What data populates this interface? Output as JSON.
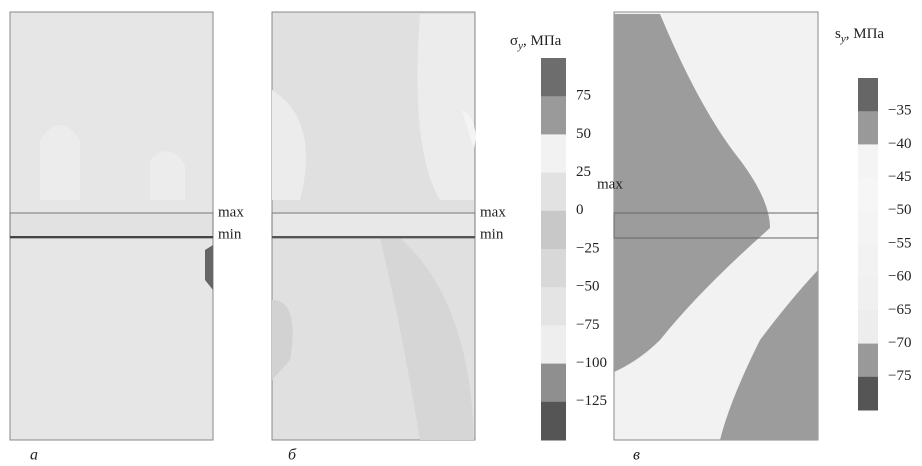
{
  "panels": [
    {
      "label": "а",
      "max": "max",
      "min": "min"
    },
    {
      "label": "б",
      "max": "max",
      "min": "min"
    },
    {
      "label": "в",
      "max": "max"
    }
  ],
  "legends": [
    {
      "symbol": "σ",
      "subscript": "y",
      "unit": ", МПа",
      "ticks": [
        "75",
        "50",
        "25",
        "0",
        "−25",
        "−50",
        "−75",
        "−100",
        "−125"
      ]
    },
    {
      "symbol": "s",
      "subscript": "y",
      "unit": ", МПа",
      "ticks": [
        "−35",
        "−40",
        "−45",
        "−50",
        "−55",
        "−60",
        "−65",
        "−70",
        "−75"
      ]
    }
  ]
}
